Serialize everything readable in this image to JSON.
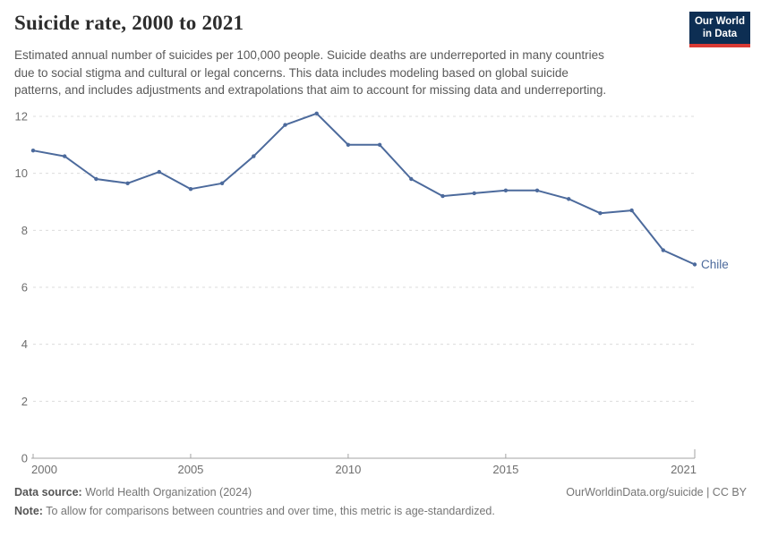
{
  "header": {
    "title": "Suicide rate, 2000 to 2021",
    "subtitle_lines": [
      "Estimated annual number of suicides per 100,000 people. Suicide deaths are underreported in many countries",
      "due to social stigma and cultural or legal concerns. This data includes modeling based on global suicide",
      "patterns, and includes adjustments and extrapolations that aim to account for missing data and underreporting."
    ],
    "logo": {
      "line1": "Our World",
      "line2": "in Data",
      "bg": "#0d2e53",
      "accent": "#d93a34"
    }
  },
  "chart_data": {
    "type": "line",
    "title": "Suicide rate, 2000 to 2021",
    "x": [
      2000,
      2001,
      2002,
      2003,
      2004,
      2005,
      2006,
      2007,
      2008,
      2009,
      2010,
      2011,
      2012,
      2013,
      2014,
      2015,
      2016,
      2017,
      2018,
      2019,
      2020,
      2021
    ],
    "series": [
      {
        "name": "Chile",
        "color": "#4c6a9c",
        "values": [
          10.8,
          10.6,
          9.8,
          9.65,
          10.05,
          9.45,
          9.65,
          10.6,
          11.7,
          12.1,
          11.0,
          11.0,
          9.8,
          9.2,
          9.3,
          9.4,
          9.4,
          9.1,
          8.6,
          8.7,
          7.3,
          6.8
        ]
      }
    ],
    "ylim": [
      0,
      12
    ],
    "yticks": [
      0,
      2,
      4,
      6,
      8,
      10,
      12
    ],
    "xticks": [
      2000,
      2005,
      2010,
      2015,
      2021
    ],
    "grid": "horizontal-dashed",
    "legend": "end-of-line-label"
  },
  "colors": {
    "line": "#4c6a9c",
    "grid": "#dcdcdc",
    "axis": "#a3a3a3",
    "tick_text": "#6e6e6e"
  },
  "footer": {
    "datasource_label": "Data source:",
    "datasource_value": " World Health Organization (2024)",
    "url": "OurWorldinData.org/suicide | CC BY",
    "note_label": "Note:",
    "note_value": " To allow for comparisons between countries and over time, this metric is age-standardized."
  }
}
